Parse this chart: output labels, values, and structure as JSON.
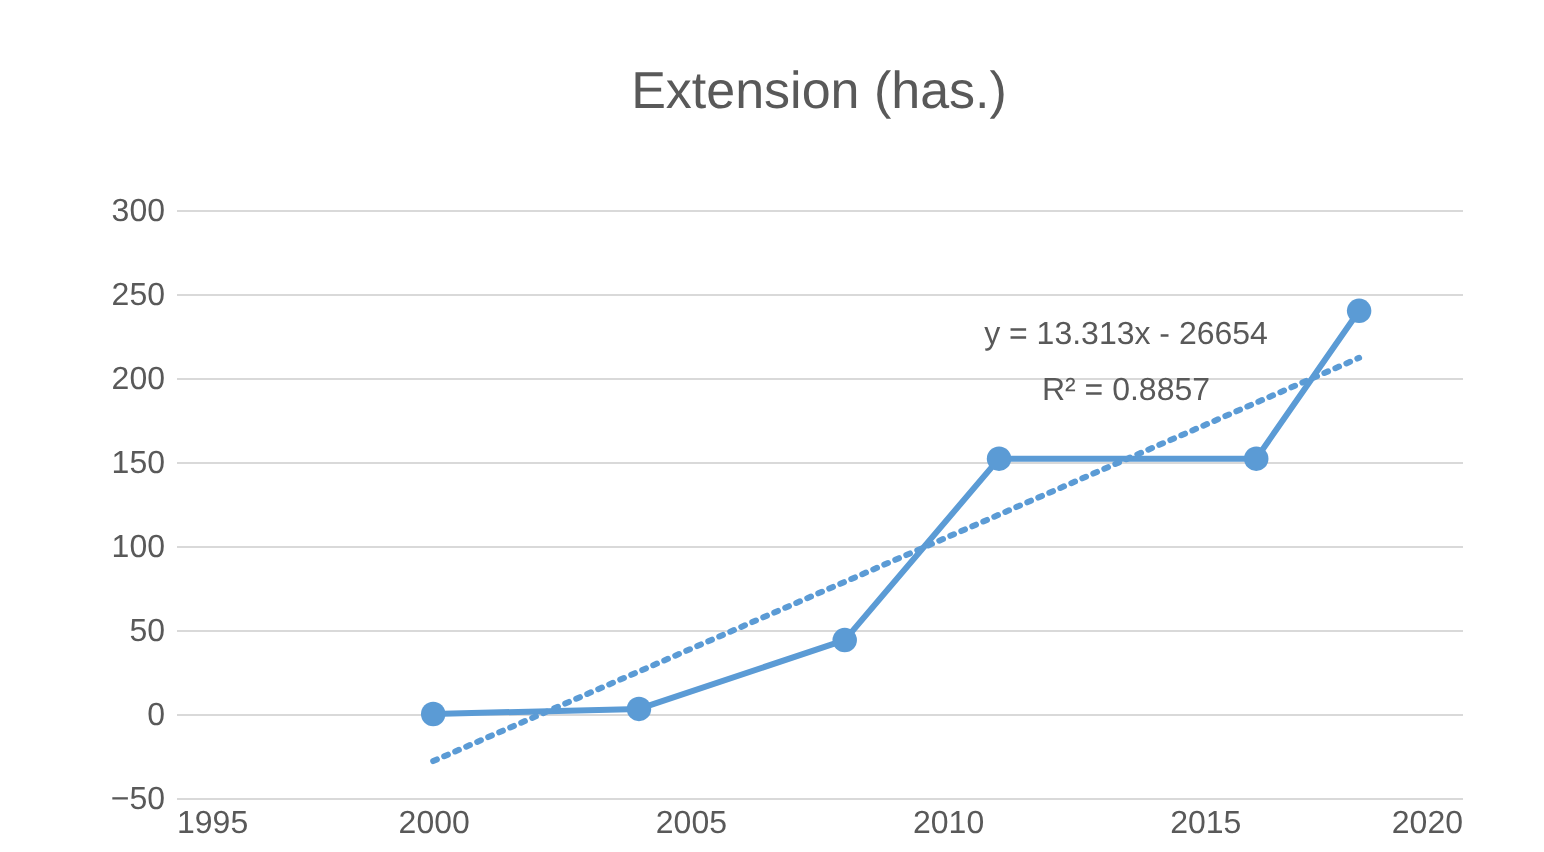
{
  "chart_data": {
    "type": "line",
    "title": "Extension (has.)",
    "series": [
      {
        "color": "#5b9bd5",
        "x": [
          2000,
          2004,
          2008,
          2011,
          2016,
          2018
        ],
        "values": [
          0,
          3,
          44,
          152,
          152,
          240
        ],
        "marker": "circle",
        "line_style": "solid"
      },
      {
        "type": "line",
        "color": "#5b9bd5",
        "x": [
          2000,
          2018
        ],
        "values": [
          -28,
          212
        ],
        "marker": "none",
        "line_style": "dotted"
      }
    ],
    "xlim": [
      1995,
      2020
    ],
    "xticks": [
      1995,
      2000,
      2005,
      2010,
      2015,
      2020
    ],
    "ylim": [
      -50,
      300
    ],
    "yticks": [
      -50,
      0,
      50,
      100,
      150,
      200,
      250,
      300
    ],
    "grid": "y",
    "annotations": [
      "y = 13.313x - 26654",
      "R² = 0.8857"
    ]
  }
}
